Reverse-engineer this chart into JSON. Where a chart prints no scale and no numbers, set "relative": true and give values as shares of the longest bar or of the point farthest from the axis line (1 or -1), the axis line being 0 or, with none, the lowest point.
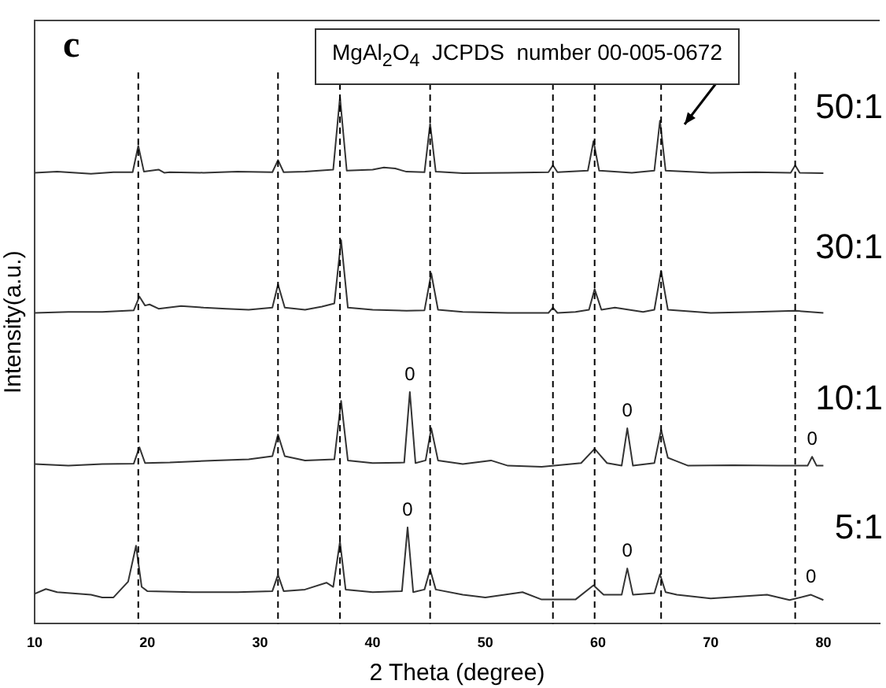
{
  "chart_data": {
    "type": "line",
    "relative": true,
    "xlabel": "2 Theta (degree)",
    "ylabel": "Intensity(a.u.)",
    "xlim": [
      10,
      85
    ],
    "xticks": [
      10,
      20,
      30,
      40,
      50,
      60,
      70,
      80
    ],
    "tick_labels": "x",
    "grid": false,
    "legend": false,
    "marker": "none",
    "line_style": "solid",
    "series": [
      {
        "name": "50:1",
        "color": "#333333",
        "x": [
          10,
          12,
          15,
          17,
          18.7,
          19.2,
          19.7,
          21,
          21.5,
          22,
          25,
          28,
          31.1,
          31.6,
          32.1,
          34,
          36.5,
          37.1,
          37.7,
          40,
          41,
          42,
          43,
          44.6,
          45.1,
          45.6,
          48,
          52,
          55.6,
          56,
          56.4,
          59.1,
          59.6,
          60.1,
          63,
          65,
          65.5,
          66,
          70,
          74,
          77.1,
          77.5,
          77.9,
          80
        ],
        "values": [
          0.856,
          0.858,
          0.854,
          0.857,
          0.857,
          0.907,
          0.858,
          0.862,
          0.856,
          0.857,
          0.856,
          0.858,
          0.857,
          0.88,
          0.857,
          0.858,
          0.862,
          1.0,
          0.86,
          0.862,
          0.866,
          0.864,
          0.858,
          0.857,
          0.949,
          0.858,
          0.855,
          0.856,
          0.857,
          0.87,
          0.857,
          0.86,
          0.916,
          0.86,
          0.856,
          0.86,
          0.955,
          0.86,
          0.856,
          0.857,
          0.856,
          0.87,
          0.856,
          0.855
        ]
      },
      {
        "name": "30:1",
        "color": "#333333",
        "x": [
          10,
          13,
          16,
          18.8,
          19.3,
          19.8,
          20.2,
          21,
          23,
          25,
          27,
          29,
          31.1,
          31.6,
          32.2,
          34,
          35.5,
          36.6,
          37.2,
          37.8,
          40,
          43,
          44.6,
          45.2,
          45.8,
          48,
          52,
          55.6,
          56,
          56.4,
          58,
          59.2,
          59.7,
          60.3,
          61.5,
          64,
          65,
          65.6,
          66.2,
          70,
          74,
          77.5,
          80
        ],
        "values": [
          0.59,
          0.592,
          0.592,
          0.595,
          0.621,
          0.604,
          0.606,
          0.598,
          0.603,
          0.6,
          0.598,
          0.596,
          0.6,
          0.644,
          0.6,
          0.596,
          0.602,
          0.608,
          0.728,
          0.6,
          0.596,
          0.594,
          0.595,
          0.665,
          0.596,
          0.592,
          0.59,
          0.59,
          0.6,
          0.59,
          0.592,
          0.596,
          0.635,
          0.596,
          0.6,
          0.592,
          0.596,
          0.67,
          0.596,
          0.59,
          0.592,
          0.594,
          0.59
        ]
      },
      {
        "name": "10:1",
        "color": "#333333",
        "x": [
          10,
          13,
          16,
          18.8,
          19.3,
          19.8,
          22,
          26,
          29,
          31.1,
          31.6,
          32.2,
          34,
          36.6,
          37.2,
          37.8,
          40,
          42.8,
          43.3,
          43.8,
          44.7,
          45.2,
          45.8,
          48,
          50.5,
          52,
          55,
          58.5,
          59.7,
          60.8,
          62.1,
          62.6,
          63.1,
          65,
          65.6,
          66.2,
          66.8,
          68,
          72,
          76,
          78.6,
          79,
          79.4,
          80
        ],
        "values": [
          0.303,
          0.3,
          0.303,
          0.304,
          0.335,
          0.305,
          0.306,
          0.31,
          0.312,
          0.318,
          0.359,
          0.318,
          0.31,
          0.312,
          0.423,
          0.31,
          0.305,
          0.306,
          0.44,
          0.305,
          0.31,
          0.371,
          0.31,
          0.303,
          0.31,
          0.3,
          0.298,
          0.305,
          0.332,
          0.305,
          0.3,
          0.371,
          0.3,
          0.305,
          0.368,
          0.315,
          0.31,
          0.3,
          0.301,
          0.3,
          0.3,
          0.317,
          0.3,
          0.3
        ]
      },
      {
        "name": "5:1",
        "color": "#333333",
        "x": [
          10,
          11,
          12,
          15,
          16,
          17,
          18.3,
          19,
          19.5,
          20,
          24,
          28,
          31.1,
          31.6,
          32.1,
          34,
          35.9,
          36.5,
          37.1,
          37.6,
          40,
          42.6,
          43.1,
          43.6,
          44.6,
          45.1,
          45.6,
          48,
          50,
          53.3,
          55,
          58,
          59.6,
          60.5,
          62.1,
          62.6,
          63.1,
          65,
          65.5,
          66,
          67,
          70,
          75,
          77,
          78.9,
          80
        ],
        "values": [
          0.057,
          0.066,
          0.06,
          0.055,
          0.05,
          0.05,
          0.08,
          0.148,
          0.07,
          0.062,
          0.06,
          0.06,
          0.062,
          0.093,
          0.062,
          0.065,
          0.078,
          0.07,
          0.156,
          0.065,
          0.06,
          0.062,
          0.183,
          0.06,
          0.065,
          0.103,
          0.065,
          0.055,
          0.05,
          0.06,
          0.046,
          0.046,
          0.073,
          0.055,
          0.055,
          0.105,
          0.055,
          0.058,
          0.094,
          0.06,
          0.055,
          0.048,
          0.055,
          0.045,
          0.055,
          0.045
        ]
      }
    ],
    "ref_lines": [
      {
        "axis": "x",
        "value": 19.2,
        "color": "#000000",
        "line_style": "dashed"
      },
      {
        "axis": "x",
        "value": 31.6,
        "color": "#000000",
        "line_style": "dashed"
      },
      {
        "axis": "x",
        "value": 37.1,
        "color": "#000000",
        "line_style": "dashed"
      },
      {
        "axis": "x",
        "value": 45.1,
        "color": "#000000",
        "line_style": "dashed"
      },
      {
        "axis": "x",
        "value": 56.0,
        "color": "#000000",
        "line_style": "dashed"
      },
      {
        "axis": "x",
        "value": 59.7,
        "color": "#000000",
        "line_style": "dashed"
      },
      {
        "axis": "x",
        "value": 65.6,
        "color": "#000000",
        "line_style": "dashed"
      },
      {
        "axis": "x",
        "value": 77.5,
        "color": "#000000",
        "line_style": "dashed"
      }
    ],
    "annotations": [
      "c",
      "MgAl$_{2}$O$_{4}$  JCPDS  number 00-005-0672",
      {
        "text": "0",
        "x": 43.3,
        "y": 0.44
      },
      {
        "text": "0",
        "x": 62.6,
        "y": 0.371
      },
      {
        "text": "0",
        "x": 79,
        "y": 0.317
      },
      {
        "text": "0",
        "x": 43.1,
        "y": 0.183
      },
      {
        "text": "0",
        "x": 62.6,
        "y": 0.105
      },
      {
        "text": "0",
        "x": 78.9,
        "y": 0.055
      }
    ]
  }
}
